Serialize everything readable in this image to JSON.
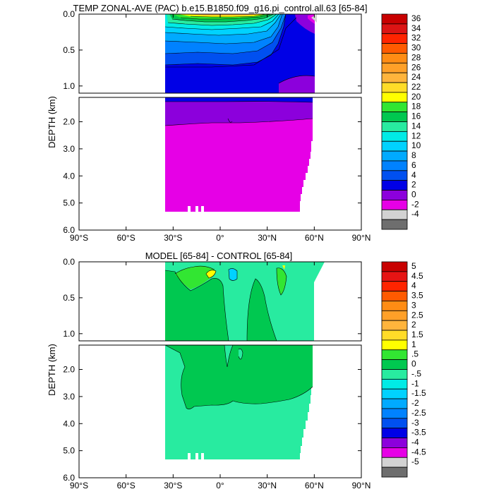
{
  "chart_data": [
    {
      "type": "heatmap",
      "title": "TEMP ZONAL-AVE (PAC) b.e15.B1850.f09_g16.pi_control.all.63 [65-84]",
      "ylabel": "DEPTH (km)",
      "xlabel": "",
      "x_ticks": [
        "90°S",
        "60°S",
        "30°S",
        "0°",
        "30°N",
        "60°N",
        "90°N"
      ],
      "xlim": [
        -90,
        90
      ],
      "upper_panel": {
        "ylim": [
          0.0,
          1.1
        ],
        "y_ticks": [
          "0.0",
          "0.5",
          "1.0"
        ]
      },
      "lower_panel": {
        "ylim": [
          1.1,
          6.0
        ],
        "y_ticks": [
          "2.0",
          "3.0",
          "4.0",
          "5.0",
          "6.0"
        ]
      },
      "colorbar": {
        "labels": [
          "36",
          "34",
          "32",
          "30",
          "28",
          "26",
          "24",
          "22",
          "20",
          "18",
          "16",
          "14",
          "12",
          "10",
          "8",
          "6",
          "4",
          "2",
          "0",
          "-2",
          "-4"
        ],
        "colors": [
          "#c80000",
          "#dc1414",
          "#ff2400",
          "#ff5a00",
          "#ff8c14",
          "#ffa028",
          "#ffb43c",
          "#ffdc28",
          "#ffff00",
          "#32e632",
          "#00c850",
          "#28eba0",
          "#00ebe6",
          "#00d2ff",
          "#00aaff",
          "#0082ff",
          "#0050f0",
          "#0000e6",
          "#8c00dc",
          "#e600e6",
          "#d2d2d2",
          "#6e6e6e"
        ]
      },
      "data_extent": {
        "lat_south": -33,
        "lat_north": 62,
        "max_depth_km": 5.35
      }
    },
    {
      "type": "heatmap",
      "title": "MODEL [65-84] - CONTROL [65-84]",
      "ylabel": "DEPTH (km)",
      "xlabel": "",
      "x_ticks": [
        "90°S",
        "60°S",
        "30°S",
        "0°",
        "30°N",
        "60°N",
        "90°N"
      ],
      "xlim": [
        -90,
        90
      ],
      "upper_panel": {
        "ylim": [
          0.0,
          1.1
        ],
        "y_ticks": [
          "0.0",
          "0.5",
          "1.0"
        ]
      },
      "lower_panel": {
        "ylim": [
          1.1,
          6.0
        ],
        "y_ticks": [
          "2.0",
          "3.0",
          "4.0",
          "5.0",
          "6.0"
        ]
      },
      "colorbar": {
        "labels": [
          "5",
          "4.5",
          "4",
          "3.5",
          "3",
          "2.5",
          "2",
          "1.5",
          "1",
          ".5",
          "0",
          "-.5",
          "-1",
          "-1.5",
          "-2",
          "-2.5",
          "-3",
          "-3.5",
          "-4",
          "-4.5",
          "-5"
        ],
        "colors": [
          "#c80000",
          "#e61414",
          "#ff2400",
          "#ff5a00",
          "#ff8c14",
          "#ffa028",
          "#ffb43c",
          "#ffdc28",
          "#ffff00",
          "#32e632",
          "#00c850",
          "#28eba0",
          "#00ebe6",
          "#00d2ff",
          "#00aaff",
          "#0082ff",
          "#0050f0",
          "#0000e6",
          "#8c00dc",
          "#e600e6",
          "#d2d2d2",
          "#6e6e6e"
        ]
      },
      "data_extent": {
        "lat_south": -33,
        "lat_north": 62,
        "max_depth_km": 5.35
      }
    }
  ]
}
